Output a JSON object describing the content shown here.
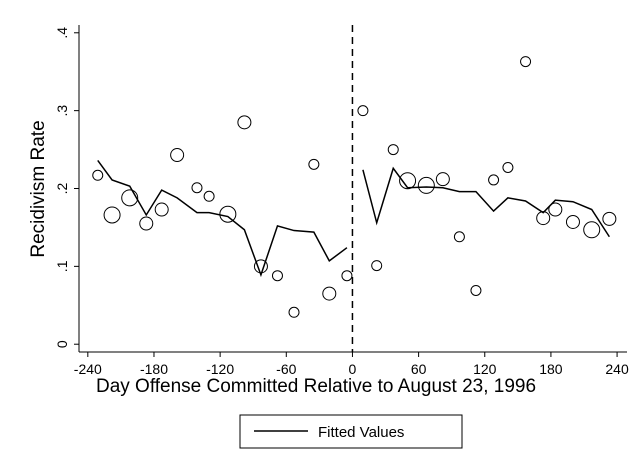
{
  "chart_data": {
    "type": "scatter",
    "xlabel": "Day Offense Committed Relative to August 23, 1996",
    "ylabel": "Recidivism Rate",
    "xlim": [
      -248,
      249
    ],
    "ylim": [
      -0.01,
      0.41
    ],
    "xticks": [
      -240,
      -180,
      -120,
      -60,
      0,
      60,
      120,
      180,
      240
    ],
    "yticks": [
      0,
      {
        "value": 0.1,
        "label": ".1"
      },
      {
        "value": 0.2,
        "label": ".2"
      },
      {
        "value": 0.3,
        "label": ".3"
      },
      {
        "value": 0.4,
        "label": ".4"
      }
    ],
    "cutoff": 0,
    "x": [
      -231,
      -218,
      -202,
      -187,
      -173,
      -159,
      -141,
      -130,
      -113,
      -98,
      -83,
      -68,
      -53,
      -35,
      -21,
      -5,
      9.5,
      22,
      37,
      50,
      67,
      82,
      97,
      112,
      128,
      141,
      157,
      173,
      184,
      200,
      217,
      233
    ],
    "y": [
      0.217,
      0.166,
      0.188,
      0.155,
      0.173,
      0.243,
      0.201,
      0.19,
      0.167,
      0.285,
      0.1,
      0.088,
      0.041,
      0.231,
      0.065,
      0.088,
      0.3,
      0.101,
      0.25,
      0.21,
      0.204,
      0.212,
      0.138,
      0.069,
      0.211,
      0.227,
      0.363,
      0.162,
      0.173,
      0.157,
      0.147,
      0.161
    ],
    "sizes": [
      5,
      8,
      8,
      6.5,
      6.5,
      6.5,
      5,
      5,
      8,
      6.5,
      6.5,
      5,
      5,
      5,
      6.5,
      5,
      5,
      5,
      5,
      8,
      8,
      6.5,
      5,
      5,
      5,
      5,
      5,
      6.5,
      6.5,
      6.5,
      8,
      6.5
    ],
    "fitted": {
      "name": "Fitted Values",
      "color": "#000000",
      "values": [
        0.236,
        0.211,
        0.203,
        0.166,
        0.198,
        0.188,
        0.169,
        0.169,
        0.164,
        0.147,
        0.089,
        0.152,
        0.146,
        0.144,
        0.107,
        0.124,
        0.224,
        0.156,
        0.226,
        0.201,
        0.202,
        0.201,
        0.196,
        0.196,
        0.171,
        0.188,
        0.184,
        0.169,
        0.185,
        0.183,
        0.173,
        0.138
      ]
    }
  }
}
